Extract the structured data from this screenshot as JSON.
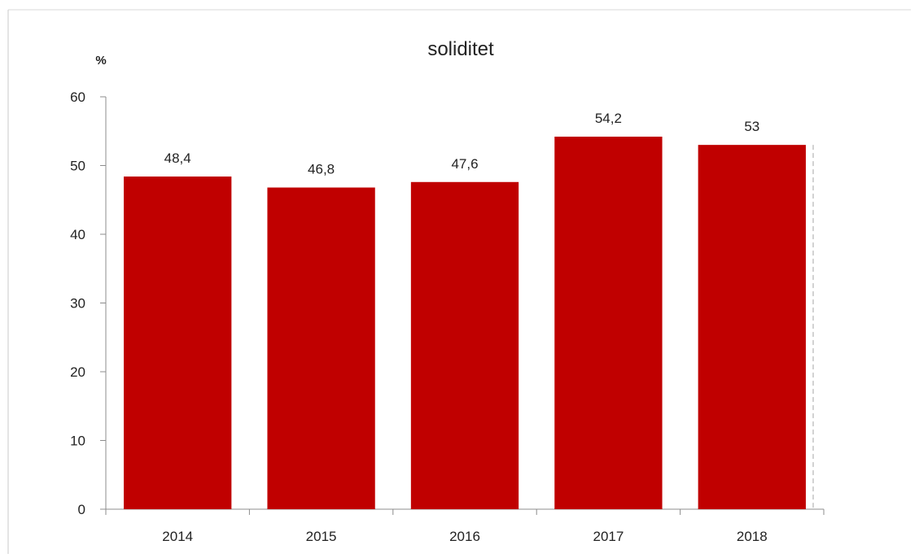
{
  "chart_data": {
    "type": "bar",
    "title": "soliditet",
    "ylabel": "%",
    "xlabel": "",
    "categories": [
      "2014",
      "2015",
      "2016",
      "2017",
      "2018"
    ],
    "values": [
      48.4,
      46.8,
      47.6,
      54.2,
      53
    ],
    "value_labels": [
      "48,4",
      "46,8",
      "47,6",
      "54,2",
      "53"
    ],
    "ylim": [
      0,
      60
    ],
    "yticks": [
      0,
      10,
      20,
      30,
      40,
      50,
      60
    ],
    "ytick_labels": [
      "0",
      "10",
      "20",
      "30",
      "40",
      "50",
      "60"
    ],
    "grid": false,
    "legend": "none",
    "bar_color": "#c00000"
  }
}
